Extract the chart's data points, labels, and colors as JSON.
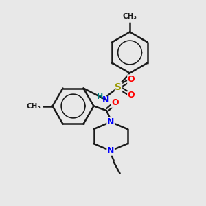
{
  "bg_color": "#e8e8e8",
  "bond_color": "#1a1a1a",
  "bond_lw": 1.8,
  "atom_colors": {
    "N": "#0000ff",
    "O": "#ff0000",
    "S": "#999900",
    "H": "#008080",
    "C": "#1a1a1a"
  },
  "font_size_atom": 9,
  "font_size_small": 7.5
}
